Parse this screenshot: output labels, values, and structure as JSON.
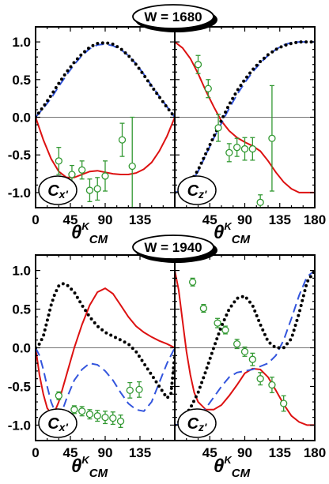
{
  "figure": {
    "xlabel_main": "θ",
    "xlabel_sup": "K",
    "xlabel_sub": "CM"
  },
  "chart_data": [
    {
      "type": "line",
      "title": "W = 1680",
      "panels": [
        {
          "badge": "Cx'",
          "xlim": [
            0,
            180
          ],
          "ylim": [
            -1.2,
            1.2
          ],
          "x_ticks": [
            0,
            45,
            90,
            135
          ],
          "y_ticks": [
            "-1.0",
            "-0.5",
            "0.0",
            "0.5",
            "1.0"
          ],
          "series": [
            {
              "style": "solid",
              "color": "#dd1111",
              "x": [
                0,
                10,
                20,
                30,
                40,
                50,
                60,
                70,
                80,
                90,
                100,
                110,
                120,
                130,
                140,
                150,
                160,
                170,
                180
              ],
              "y": [
                0,
                -0.3,
                -0.55,
                -0.72,
                -0.8,
                -0.8,
                -0.76,
                -0.72,
                -0.71,
                -0.73,
                -0.75,
                -0.76,
                -0.76,
                -0.74,
                -0.69,
                -0.6,
                -0.45,
                -0.25,
                0
              ]
            },
            {
              "style": "dashed",
              "color": "#3355dd",
              "x": [
                0,
                10,
                20,
                30,
                40,
                50,
                60,
                70,
                80,
                90,
                100,
                110,
                120,
                130,
                140,
                150,
                160,
                170,
                180
              ],
              "y": [
                0,
                0.12,
                0.25,
                0.41,
                0.56,
                0.7,
                0.82,
                0.91,
                0.96,
                0.97,
                0.95,
                0.9,
                0.82,
                0.71,
                0.57,
                0.42,
                0.28,
                0.14,
                0
              ]
            },
            {
              "style": "dotted",
              "color": "#000000",
              "x": [
                0,
                10,
                20,
                30,
                40,
                50,
                60,
                70,
                80,
                90,
                100,
                110,
                120,
                130,
                140,
                150,
                160,
                170,
                180
              ],
              "y": [
                0,
                0.14,
                0.29,
                0.45,
                0.6,
                0.73,
                0.84,
                0.93,
                0.98,
                0.99,
                0.97,
                0.91,
                0.82,
                0.7,
                0.56,
                0.41,
                0.27,
                0.13,
                0
              ]
            }
          ],
          "points": {
            "color": "#339933",
            "x": [
              30,
              47,
              60,
              70,
              80,
              90,
              112,
              125
            ],
            "y": [
              -0.58,
              -0.76,
              -0.7,
              -0.97,
              -0.95,
              -0.78,
              -0.3,
              -0.65
            ],
            "err": [
              0.18,
              0.12,
              0.12,
              0.15,
              0.15,
              0.2,
              0.22,
              0.65
            ]
          }
        },
        {
          "badge": "Cz'",
          "xlim": [
            0,
            180
          ],
          "ylim": [
            -1.2,
            1.2
          ],
          "x_ticks": [
            45,
            90,
            135,
            180
          ],
          "y_ticks": [],
          "series": [
            {
              "style": "solid",
              "color": "#dd1111",
              "x": [
                0,
                10,
                20,
                30,
                40,
                50,
                60,
                70,
                80,
                90,
                100,
                110,
                120,
                130,
                140,
                150,
                160,
                170,
                180
              ],
              "y": [
                1,
                0.92,
                0.78,
                0.58,
                0.35,
                0.14,
                -0.05,
                -0.18,
                -0.27,
                -0.33,
                -0.38,
                -0.45,
                -0.58,
                -0.73,
                -0.86,
                -0.95,
                -1,
                -1,
                -1
              ]
            },
            {
              "style": "dashed",
              "color": "#3355dd",
              "x": [
                0,
                10,
                20,
                30,
                40,
                50,
                60,
                70,
                80,
                90,
                100,
                110,
                120,
                130,
                140,
                150,
                160,
                170,
                180
              ],
              "y": [
                -1,
                -0.97,
                -0.88,
                -0.72,
                -0.5,
                -0.28,
                -0.08,
                0.12,
                0.3,
                0.46,
                0.6,
                0.72,
                0.82,
                0.9,
                0.96,
                0.99,
                1,
                1,
                1
              ]
            },
            {
              "style": "dotted",
              "color": "#000000",
              "x": [
                0,
                10,
                20,
                30,
                40,
                50,
                60,
                70,
                80,
                90,
                100,
                110,
                120,
                130,
                140,
                150,
                160,
                170,
                180
              ],
              "y": [
                -1,
                -0.96,
                -0.86,
                -0.7,
                -0.48,
                -0.26,
                -0.04,
                0.17,
                0.35,
                0.5,
                0.63,
                0.74,
                0.83,
                0.9,
                0.95,
                0.98,
                1,
                1,
                1
              ]
            }
          ],
          "points": {
            "color": "#339933",
            "x": [
              30,
              43,
              56,
              70,
              80,
              90,
              100,
              110,
              125
            ],
            "y": [
              0.7,
              0.38,
              -0.14,
              -0.47,
              -0.4,
              -0.42,
              -0.42,
              -1.13,
              -0.28
            ],
            "err": [
              0.12,
              0.12,
              0.18,
              0.12,
              0.12,
              0.15,
              0.15,
              0.1,
              0.7
            ]
          }
        }
      ]
    },
    {
      "type": "line",
      "title": "W = 1940",
      "panels": [
        {
          "badge": "Cx'",
          "xlim": [
            0,
            180
          ],
          "ylim": [
            -1.2,
            1.2
          ],
          "x_ticks": [
            0,
            45,
            90,
            135
          ],
          "y_ticks": [
            "-1.0",
            "-0.5",
            "0.0",
            "0.5",
            "1.0"
          ],
          "series": [
            {
              "style": "solid",
              "color": "#dd1111",
              "x": [
                0,
                5,
                10,
                15,
                20,
                25,
                30,
                40,
                50,
                60,
                70,
                80,
                90,
                100,
                110,
                120,
                130,
                140,
                150,
                160,
                170,
                180
              ],
              "y": [
                0,
                -0.35,
                -0.6,
                -0.78,
                -0.85,
                -0.82,
                -0.7,
                -0.35,
                0,
                0.3,
                0.55,
                0.72,
                0.77,
                0.7,
                0.55,
                0.4,
                0.28,
                0.2,
                0.14,
                0.09,
                0.05,
                0
              ]
            },
            {
              "style": "dashed",
              "color": "#3355dd",
              "x": [
                0,
                5,
                10,
                15,
                20,
                25,
                30,
                35,
                40,
                50,
                60,
                70,
                80,
                90,
                100,
                110,
                120,
                130,
                140,
                150,
                160,
                170,
                180
              ],
              "y": [
                0,
                -0.1,
                -0.28,
                -0.5,
                -0.7,
                -0.82,
                -0.86,
                -0.8,
                -0.66,
                -0.42,
                -0.28,
                -0.2,
                -0.22,
                -0.3,
                -0.42,
                -0.58,
                -0.72,
                -0.8,
                -0.82,
                -0.7,
                -0.45,
                -0.2,
                0
              ]
            },
            {
              "style": "dotted",
              "color": "#000000",
              "x": [
                0,
                5,
                10,
                15,
                20,
                25,
                30,
                35,
                40,
                50,
                60,
                70,
                80,
                90,
                100,
                110,
                120,
                130,
                140,
                150,
                160,
                170,
                175,
                180
              ],
              "y": [
                0,
                0.05,
                0.15,
                0.35,
                0.55,
                0.7,
                0.8,
                0.83,
                0.82,
                0.72,
                0.55,
                0.4,
                0.28,
                0.2,
                0.15,
                0.1,
                0.05,
                -0.05,
                -0.2,
                -0.35,
                -0.5,
                -0.65,
                -0.6,
                -0.1
              ]
            }
          ],
          "points": {
            "color": "#339933",
            "x": [
              22,
              30,
              40,
              50,
              60,
              70,
              80,
              90,
              100,
              110,
              122,
              134
            ],
            "y": [
              -0.88,
              -0.62,
              -0.88,
              -0.8,
              -0.82,
              -0.86,
              -0.88,
              -0.9,
              -0.91,
              -0.95,
              -0.55,
              -0.54
            ],
            "err": [
              0.04,
              0.05,
              0.06,
              0.05,
              0.06,
              0.06,
              0.07,
              0.08,
              0.08,
              0.08,
              0.1,
              0.1
            ]
          }
        },
        {
          "badge": "Cz'",
          "xlim": [
            0,
            180
          ],
          "ylim": [
            -1.2,
            1.2
          ],
          "x_ticks": [
            45,
            90,
            135,
            180
          ],
          "y_ticks": [],
          "series": [
            {
              "style": "solid",
              "color": "#dd1111",
              "x": [
                0,
                5,
                10,
                15,
                20,
                25,
                30,
                40,
                50,
                60,
                70,
                80,
                90,
                100,
                110,
                120,
                130,
                140,
                150,
                160,
                170,
                180
              ],
              "y": [
                1,
                0.75,
                0.35,
                -0.05,
                -0.35,
                -0.58,
                -0.7,
                -0.8,
                -0.8,
                -0.74,
                -0.62,
                -0.48,
                -0.33,
                -0.27,
                -0.28,
                -0.38,
                -0.55,
                -0.73,
                -0.88,
                -0.96,
                -1,
                -1
              ]
            },
            {
              "style": "dashed",
              "color": "#3355dd",
              "x": [
                0,
                10,
                20,
                30,
                40,
                50,
                60,
                70,
                80,
                90,
                100,
                110,
                120,
                130,
                140,
                150,
                160,
                170,
                180
              ],
              "y": [
                -1,
                -0.98,
                -0.95,
                -0.88,
                -0.78,
                -0.64,
                -0.5,
                -0.38,
                -0.32,
                -0.3,
                -0.28,
                -0.24,
                -0.2,
                -0.1,
                0.1,
                0.38,
                0.68,
                0.92,
                1
              ]
            },
            {
              "style": "dotted",
              "color": "#000000",
              "x": [
                0,
                10,
                20,
                30,
                40,
                50,
                60,
                70,
                80,
                90,
                100,
                110,
                120,
                130,
                140,
                150,
                160,
                170,
                180
              ],
              "y": [
                -1,
                -0.92,
                -0.78,
                -0.58,
                -0.3,
                0,
                0.28,
                0.5,
                0.64,
                0.67,
                0.55,
                0.3,
                0.08,
                0,
                0,
                0.12,
                0.45,
                0.85,
                1
              ]
            }
          ],
          "points": {
            "color": "#339933",
            "x": [
              23,
              37,
              55,
              65,
              80,
              90,
              100,
              110,
              125,
              140
            ],
            "y": [
              0.85,
              0.51,
              0.32,
              0.23,
              0.05,
              -0.05,
              -0.15,
              -0.4,
              -0.48,
              -0.72
            ],
            "err": [
              0.05,
              0.05,
              0.06,
              0.05,
              0.06,
              0.06,
              0.08,
              0.08,
              0.1,
              0.1
            ]
          }
        }
      ]
    }
  ]
}
